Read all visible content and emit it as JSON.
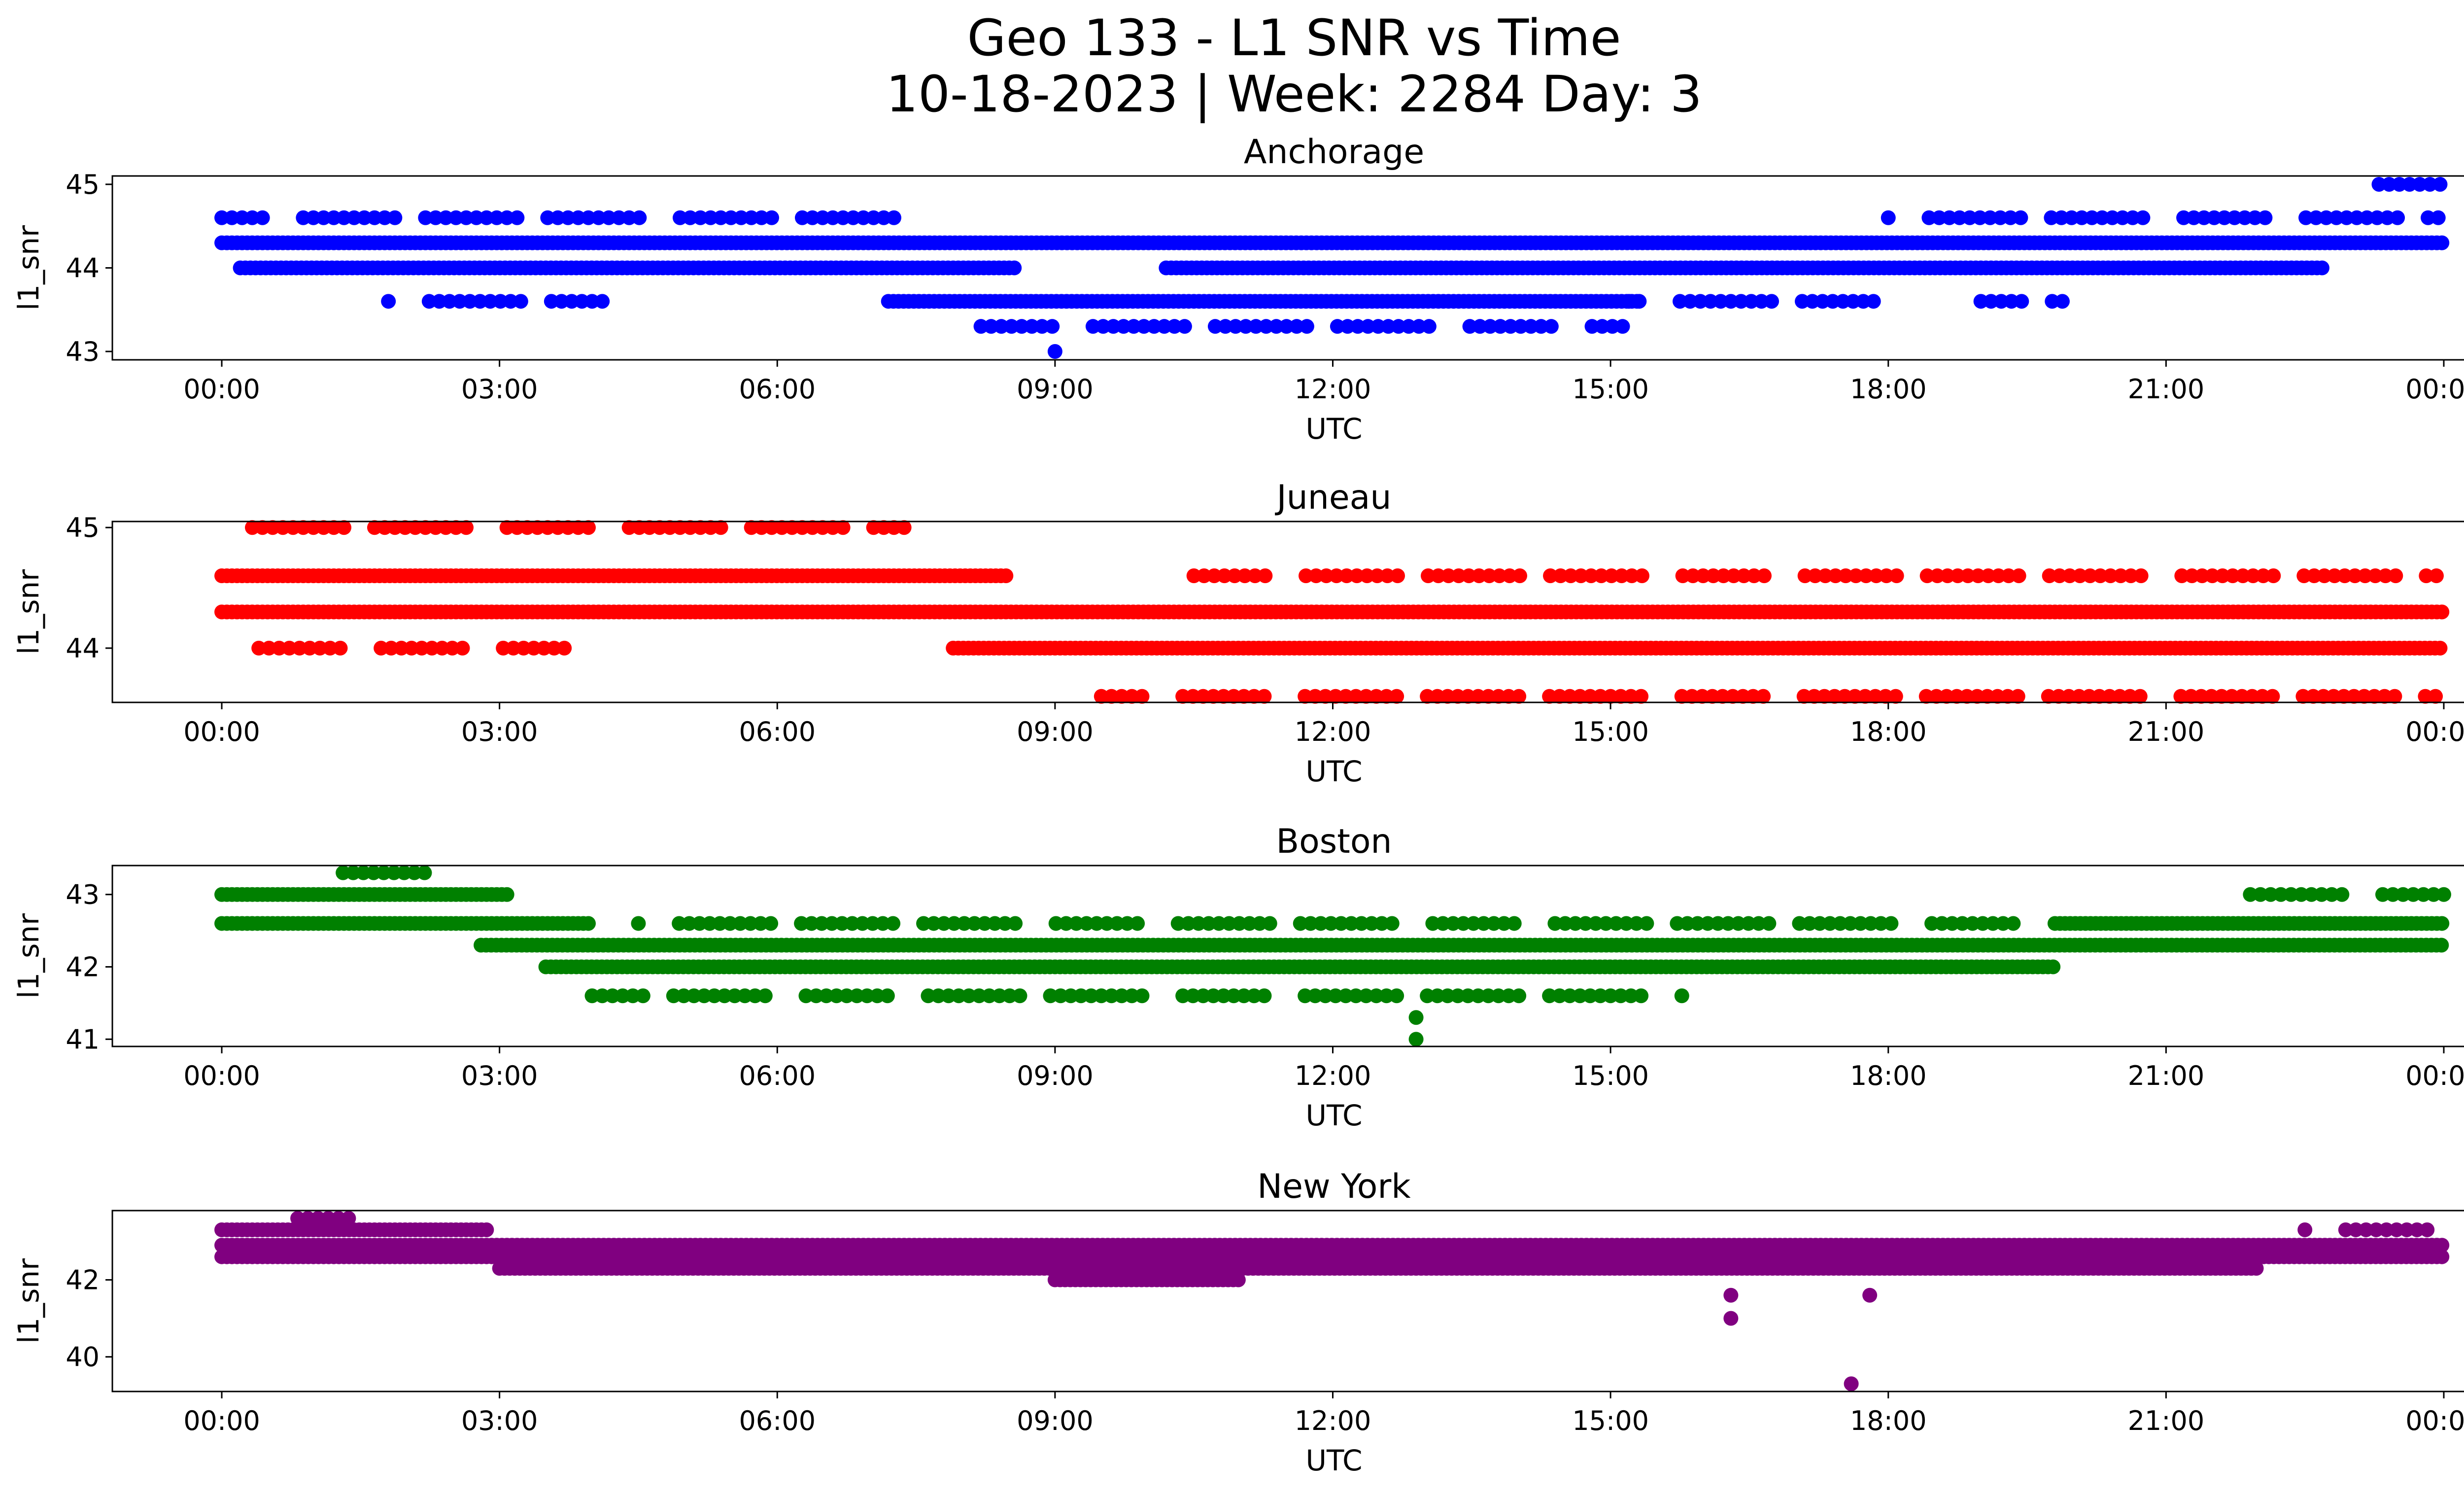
{
  "figure": {
    "title_line1": "Geo 133 - L1 SNR vs Time",
    "title_line2": "10-18-2023 | Week: 2284 Day: 3"
  },
  "chart_data": [
    {
      "type": "scatter",
      "title": "Anchorage",
      "xlabel": "UTC",
      "ylabel": "l1_snr",
      "color": "#0000ff",
      "x_ticks": [
        "00:00",
        "03:00",
        "06:00",
        "09:00",
        "12:00",
        "15:00",
        "18:00",
        "21:00",
        "00:00"
      ],
      "y_ticks": [
        43,
        44,
        45
      ],
      "ylim": [
        42.9,
        45.1
      ],
      "series": [
        {
          "values": [
            {
              "x": [
                0.0,
                24.0
              ],
              "y": 44.3
            },
            {
              "x": [
                0.0,
                7.3
              ],
              "y": 44.6,
              "sparse": true
            },
            {
              "x": [
                0.2,
                8.6
              ],
              "y": 44.0
            },
            {
              "x": [
                1.8,
                4.2
              ],
              "y": 43.6,
              "sparse": true
            },
            {
              "x": [
                7.2,
                15.3
              ],
              "y": 43.6
            },
            {
              "x": [
                8.2,
                15.2
              ],
              "y": 43.3,
              "sparse": true
            },
            {
              "x": [
                10.2,
                22.7
              ],
              "y": 44.0
            },
            {
              "x": [
                15.2,
                17.9
              ],
              "y": 43.6,
              "sparse": true
            },
            {
              "x": [
                18.0,
                24.0
              ],
              "y": 44.6,
              "sparse": true
            },
            {
              "x": [
                19.0,
                19.9
              ],
              "y": 43.6,
              "sparse": true
            },
            {
              "x": [
                23.3,
                24.0
              ],
              "y": 45.0,
              "sparse": true
            },
            {
              "x": [
                9.0,
                9.0
              ],
              "y": 43.0
            }
          ]
        }
      ]
    },
    {
      "type": "scatter",
      "title": "Juneau",
      "xlabel": "UTC",
      "ylabel": "l1_snr",
      "color": "#ff0000",
      "x_ticks": [
        "00:00",
        "03:00",
        "06:00",
        "09:00",
        "12:00",
        "15:00",
        "18:00",
        "21:00",
        "00:00"
      ],
      "y_ticks": [
        44,
        45
      ],
      "ylim": [
        43.55,
        45.05
      ],
      "series": [
        {
          "values": [
            {
              "x": [
                0.0,
                24.0
              ],
              "y": 44.3
            },
            {
              "x": [
                0.0,
                8.5
              ],
              "y": 44.6
            },
            {
              "x": [
                10.5,
                24.0
              ],
              "y": 44.6,
              "sparse": true
            },
            {
              "x": [
                0.4,
                3.7
              ],
              "y": 44.0,
              "sparse": true
            },
            {
              "x": [
                7.9,
                24.0
              ],
              "y": 44.0
            },
            {
              "x": [
                0.0,
                7.4
              ],
              "y": 45.0,
              "sparse": true
            },
            {
              "x": [
                9.5,
                24.0
              ],
              "y": 43.6,
              "sparse": true
            }
          ]
        }
      ]
    },
    {
      "type": "scatter",
      "title": "Boston",
      "xlabel": "UTC",
      "ylabel": "l1_snr",
      "color": "#008000",
      "x_ticks": [
        "00:00",
        "03:00",
        "06:00",
        "09:00",
        "12:00",
        "15:00",
        "18:00",
        "21:00",
        "00:00"
      ],
      "y_ticks": [
        41,
        42,
        43
      ],
      "ylim": [
        40.9,
        43.4
      ],
      "series": [
        {
          "values": [
            {
              "x": [
                0.0,
                3.1
              ],
              "y": 43.0
            },
            {
              "x": [
                0.0,
                4.0
              ],
              "y": 42.6
            },
            {
              "x": [
                2.8,
                24.0
              ],
              "y": 42.3
            },
            {
              "x": [
                3.5,
                19.8
              ],
              "y": 42.0
            },
            {
              "x": [
                4.0,
                15.8
              ],
              "y": 41.6,
              "sparse": true
            },
            {
              "x": [
                4.5,
                19.5
              ],
              "y": 42.6,
              "sparse": true
            },
            {
              "x": [
                19.8,
                24.0
              ],
              "y": 42.6
            },
            {
              "x": [
                21.8,
                24.0
              ],
              "y": 43.0,
              "sparse": true
            },
            {
              "x": [
                1.2,
                2.2
              ],
              "y": 43.3,
              "sparse": true
            },
            {
              "x": [
                12.9,
                12.9
              ],
              "y": 41.3
            },
            {
              "x": [
                12.9,
                12.9
              ],
              "y": 41.0
            }
          ]
        }
      ]
    },
    {
      "type": "scatter",
      "title": "New York",
      "xlabel": "UTC",
      "ylabel": "l1_snr",
      "color": "#800080",
      "x_ticks": [
        "00:00",
        "03:00",
        "06:00",
        "09:00",
        "12:00",
        "15:00",
        "18:00",
        "21:00",
        "00:00"
      ],
      "y_ticks": [
        40,
        42
      ],
      "ylim": [
        39.1,
        43.8
      ],
      "series": [
        {
          "values": [
            {
              "x": [
                0.0,
                2.9
              ],
              "y": 43.3
            },
            {
              "x": [
                0.0,
                24.0
              ],
              "y": 42.6
            },
            {
              "x": [
                0.0,
                24.0
              ],
              "y": 42.9
            },
            {
              "x": [
                3.0,
                22.0
              ],
              "y": 42.3
            },
            {
              "x": [
                9.0,
                11.0
              ],
              "y": 42.0
            },
            {
              "x": [
                0.6,
                1.4
              ],
              "y": 43.6,
              "sparse": true
            },
            {
              "x": [
                22.5,
                24.0
              ],
              "y": 43.3,
              "sparse": true
            },
            {
              "x": [
                16.3,
                16.3
              ],
              "y": 41.6
            },
            {
              "x": [
                16.3,
                16.3
              ],
              "y": 41.0
            },
            {
              "x": [
                17.8,
                17.8
              ],
              "y": 41.6
            },
            {
              "x": [
                17.6,
                17.6
              ],
              "y": 39.3
            }
          ]
        }
      ]
    }
  ]
}
